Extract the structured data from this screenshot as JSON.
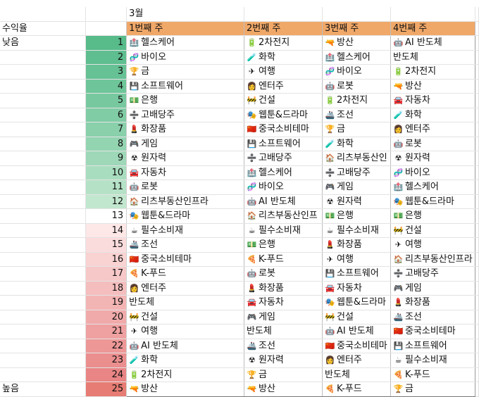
{
  "month": "3월",
  "row_label": "수익율",
  "low_label": "낮음",
  "high_label": "높음",
  "weeks": [
    "1번째 주",
    "2번째 주",
    "3번째 주",
    "4번째 주"
  ],
  "rank_colors": [
    "#57bb8a",
    "#5ebe8f",
    "#66c194",
    "#6ec599",
    "#77c89f",
    "#80cca5",
    "#89d0ab",
    "#93d4b1",
    "#9ed8b8",
    "#a9ddbf",
    "#b5e2c7",
    "#c2e7cf",
    "#ffffff",
    "#fde7e7",
    "#fbdcdc",
    "#f9d2d2",
    "#f7c8c8",
    "#f5bebe",
    "#f3b4b4",
    "#f1aaaa",
    "#efa0a0",
    "#ed9797",
    "#eb8e8e",
    "#e98585",
    "#e67c73"
  ],
  "rows": [
    {
      "rank": "1",
      "cells": [
        {
          "icon": "hospital-icon",
          "text": "헬스케어"
        },
        {
          "icon": "battery-icon",
          "text": "2차전지"
        },
        {
          "icon": "water-gun-icon",
          "text": "방산"
        },
        {
          "icon": "robot-icon",
          "text": "AI 반도체"
        }
      ]
    },
    {
      "rank": "2",
      "cells": [
        {
          "icon": "dna-icon",
          "text": "바이오"
        },
        {
          "icon": "test-tube-icon",
          "text": "화학"
        },
        {
          "icon": "hospital-icon",
          "text": "헬스케어"
        },
        {
          "icon": "",
          "text": "반도체"
        }
      ]
    },
    {
      "rank": "3",
      "cells": [
        {
          "icon": "gold-icon",
          "text": "금"
        },
        {
          "icon": "airplane-icon",
          "text": "여행"
        },
        {
          "icon": "dna-icon",
          "text": "바이오"
        },
        {
          "icon": "battery-icon",
          "text": "2차전지"
        }
      ]
    },
    {
      "rank": "4",
      "cells": [
        {
          "icon": "floppy-icon",
          "text": "소프트웨어"
        },
        {
          "icon": "entertainer-icon",
          "text": "엔터주"
        },
        {
          "icon": "robot-icon",
          "text": "로봇"
        },
        {
          "icon": "water-gun-icon",
          "text": "방산"
        }
      ]
    },
    {
      "rank": "5",
      "cells": [
        {
          "icon": "money-icon",
          "text": "은행"
        },
        {
          "icon": "construction-icon",
          "text": "건설"
        },
        {
          "icon": "battery-icon",
          "text": "2차전지"
        },
        {
          "icon": "car-icon",
          "text": "자동차"
        }
      ]
    },
    {
      "rank": "6",
      "cells": [
        {
          "icon": "divide-icon",
          "text": "고배당주"
        },
        {
          "icon": "drama-icon",
          "text": "웹툰&드라마"
        },
        {
          "icon": "ship-icon",
          "text": "조선"
        },
        {
          "icon": "test-tube-icon",
          "text": "화학"
        }
      ]
    },
    {
      "rank": "7",
      "cells": [
        {
          "icon": "lipstick-icon",
          "text": "화장품"
        },
        {
          "icon": "china-flag-icon",
          "text": "중국소비테마"
        },
        {
          "icon": "gold-icon",
          "text": "금"
        },
        {
          "icon": "entertainer-icon",
          "text": "엔터주"
        }
      ]
    },
    {
      "rank": "8",
      "cells": [
        {
          "icon": "gamepad-icon",
          "text": "게임"
        },
        {
          "icon": "floppy-icon",
          "text": "소프트웨어"
        },
        {
          "icon": "test-tube-icon",
          "text": "화학"
        },
        {
          "icon": "robot-icon",
          "text": "로봇"
        }
      ]
    },
    {
      "rank": "9",
      "cells": [
        {
          "icon": "radioactive-icon",
          "text": "원자력"
        },
        {
          "icon": "divide-icon",
          "text": "고배당주"
        },
        {
          "icon": "house-icon",
          "text": "리츠부동산인"
        },
        {
          "icon": "radioactive-icon",
          "text": "원자력"
        }
      ]
    },
    {
      "rank": "10",
      "cells": [
        {
          "icon": "car-icon",
          "text": "자동차"
        },
        {
          "icon": "hospital-icon",
          "text": "헬스케어"
        },
        {
          "icon": "divide-icon",
          "text": "고배당주"
        },
        {
          "icon": "dna-icon",
          "text": "바이오"
        }
      ]
    },
    {
      "rank": "11",
      "cells": [
        {
          "icon": "robot-icon",
          "text": "로봇"
        },
        {
          "icon": "dna-icon",
          "text": "바이오"
        },
        {
          "icon": "gamepad-icon",
          "text": "게임"
        },
        {
          "icon": "hospital-icon",
          "text": "헬스케어"
        }
      ]
    },
    {
      "rank": "12",
      "cells": [
        {
          "icon": "house-icon",
          "text": "리츠부동산인프라"
        },
        {
          "icon": "robot-icon",
          "text": "AI 반도체"
        },
        {
          "icon": "radioactive-icon",
          "text": "원자력"
        },
        {
          "icon": "drama-icon",
          "text": "웹툰&드라마"
        }
      ]
    },
    {
      "rank": "13",
      "cells": [
        {
          "icon": "drama-icon",
          "text": "웹툰&드라마"
        },
        {
          "icon": "house-icon",
          "text": "리츠부동산인프"
        },
        {
          "icon": "money-icon",
          "text": "은행"
        },
        {
          "icon": "money-icon",
          "text": "은행"
        }
      ]
    },
    {
      "rank": "14",
      "cells": [
        {
          "icon": "coffee-icon",
          "text": "필수소비재"
        },
        {
          "icon": "coffee-icon",
          "text": "필수소비재"
        },
        {
          "icon": "coffee-icon",
          "text": "필수소비재"
        },
        {
          "icon": "construction-icon",
          "text": "건설"
        }
      ]
    },
    {
      "rank": "15",
      "cells": [
        {
          "icon": "ship-icon",
          "text": "조선"
        },
        {
          "icon": "money-icon",
          "text": "은행"
        },
        {
          "icon": "lipstick-icon",
          "text": "화장품"
        },
        {
          "icon": "airplane-icon",
          "text": "여행"
        }
      ]
    },
    {
      "rank": "16",
      "cells": [
        {
          "icon": "china-flag-icon",
          "text": "중국소비테마"
        },
        {
          "icon": "pizza-icon",
          "text": "K-푸드"
        },
        {
          "icon": "airplane-icon",
          "text": "여행"
        },
        {
          "icon": "house-icon",
          "text": "리츠부동산인프라"
        }
      ]
    },
    {
      "rank": "17",
      "cells": [
        {
          "icon": "pizza-icon",
          "text": "K-푸드"
        },
        {
          "icon": "robot-icon",
          "text": "로봇"
        },
        {
          "icon": "floppy-icon",
          "text": "소프트웨어"
        },
        {
          "icon": "divide-icon",
          "text": "고배당주"
        }
      ]
    },
    {
      "rank": "18",
      "cells": [
        {
          "icon": "entertainer-icon",
          "text": "엔터주"
        },
        {
          "icon": "lipstick-icon",
          "text": "화장품"
        },
        {
          "icon": "car-icon",
          "text": "자동차"
        },
        {
          "icon": "gamepad-icon",
          "text": "게임"
        }
      ]
    },
    {
      "rank": "19",
      "cells": [
        {
          "icon": "",
          "text": "반도체"
        },
        {
          "icon": "car-icon",
          "text": "자동차"
        },
        {
          "icon": "drama-icon",
          "text": "웹툰&드라마"
        },
        {
          "icon": "lipstick-icon",
          "text": "화장품"
        }
      ]
    },
    {
      "rank": "20",
      "cells": [
        {
          "icon": "construction-icon",
          "text": "건설"
        },
        {
          "icon": "gamepad-icon",
          "text": "게임"
        },
        {
          "icon": "construction-icon",
          "text": "건설"
        },
        {
          "icon": "ship-icon",
          "text": "조선"
        }
      ]
    },
    {
      "rank": "21",
      "cells": [
        {
          "icon": "airplane-icon",
          "text": "여행"
        },
        {
          "icon": "",
          "text": "반도체"
        },
        {
          "icon": "robot-icon",
          "text": "AI 반도체"
        },
        {
          "icon": "china-flag-icon",
          "text": "중국소비테마"
        }
      ]
    },
    {
      "rank": "22",
      "cells": [
        {
          "icon": "robot-icon",
          "text": "AI 반도체"
        },
        {
          "icon": "ship-icon",
          "text": "조선"
        },
        {
          "icon": "china-flag-icon",
          "text": "중국소비테마"
        },
        {
          "icon": "floppy-icon",
          "text": "소프트웨어"
        }
      ]
    },
    {
      "rank": "23",
      "cells": [
        {
          "icon": "test-tube-icon",
          "text": "화학"
        },
        {
          "icon": "radioactive-icon",
          "text": "원자력"
        },
        {
          "icon": "entertainer-icon",
          "text": "엔터주"
        },
        {
          "icon": "coffee-icon",
          "text": "필수소비재"
        }
      ]
    },
    {
      "rank": "24",
      "cells": [
        {
          "icon": "battery-icon",
          "text": "2차전지"
        },
        {
          "icon": "gold-icon",
          "text": "금"
        },
        {
          "icon": "",
          "text": "반도체"
        },
        {
          "icon": "pizza-icon",
          "text": "K-푸드"
        }
      ]
    },
    {
      "rank": "25",
      "cells": [
        {
          "icon": "water-gun-icon",
          "text": "방산"
        },
        {
          "icon": "water-gun-icon",
          "text": "방산"
        },
        {
          "icon": "pizza-icon",
          "text": "K-푸드"
        },
        {
          "icon": "gold-icon",
          "text": "금"
        }
      ]
    }
  ]
}
